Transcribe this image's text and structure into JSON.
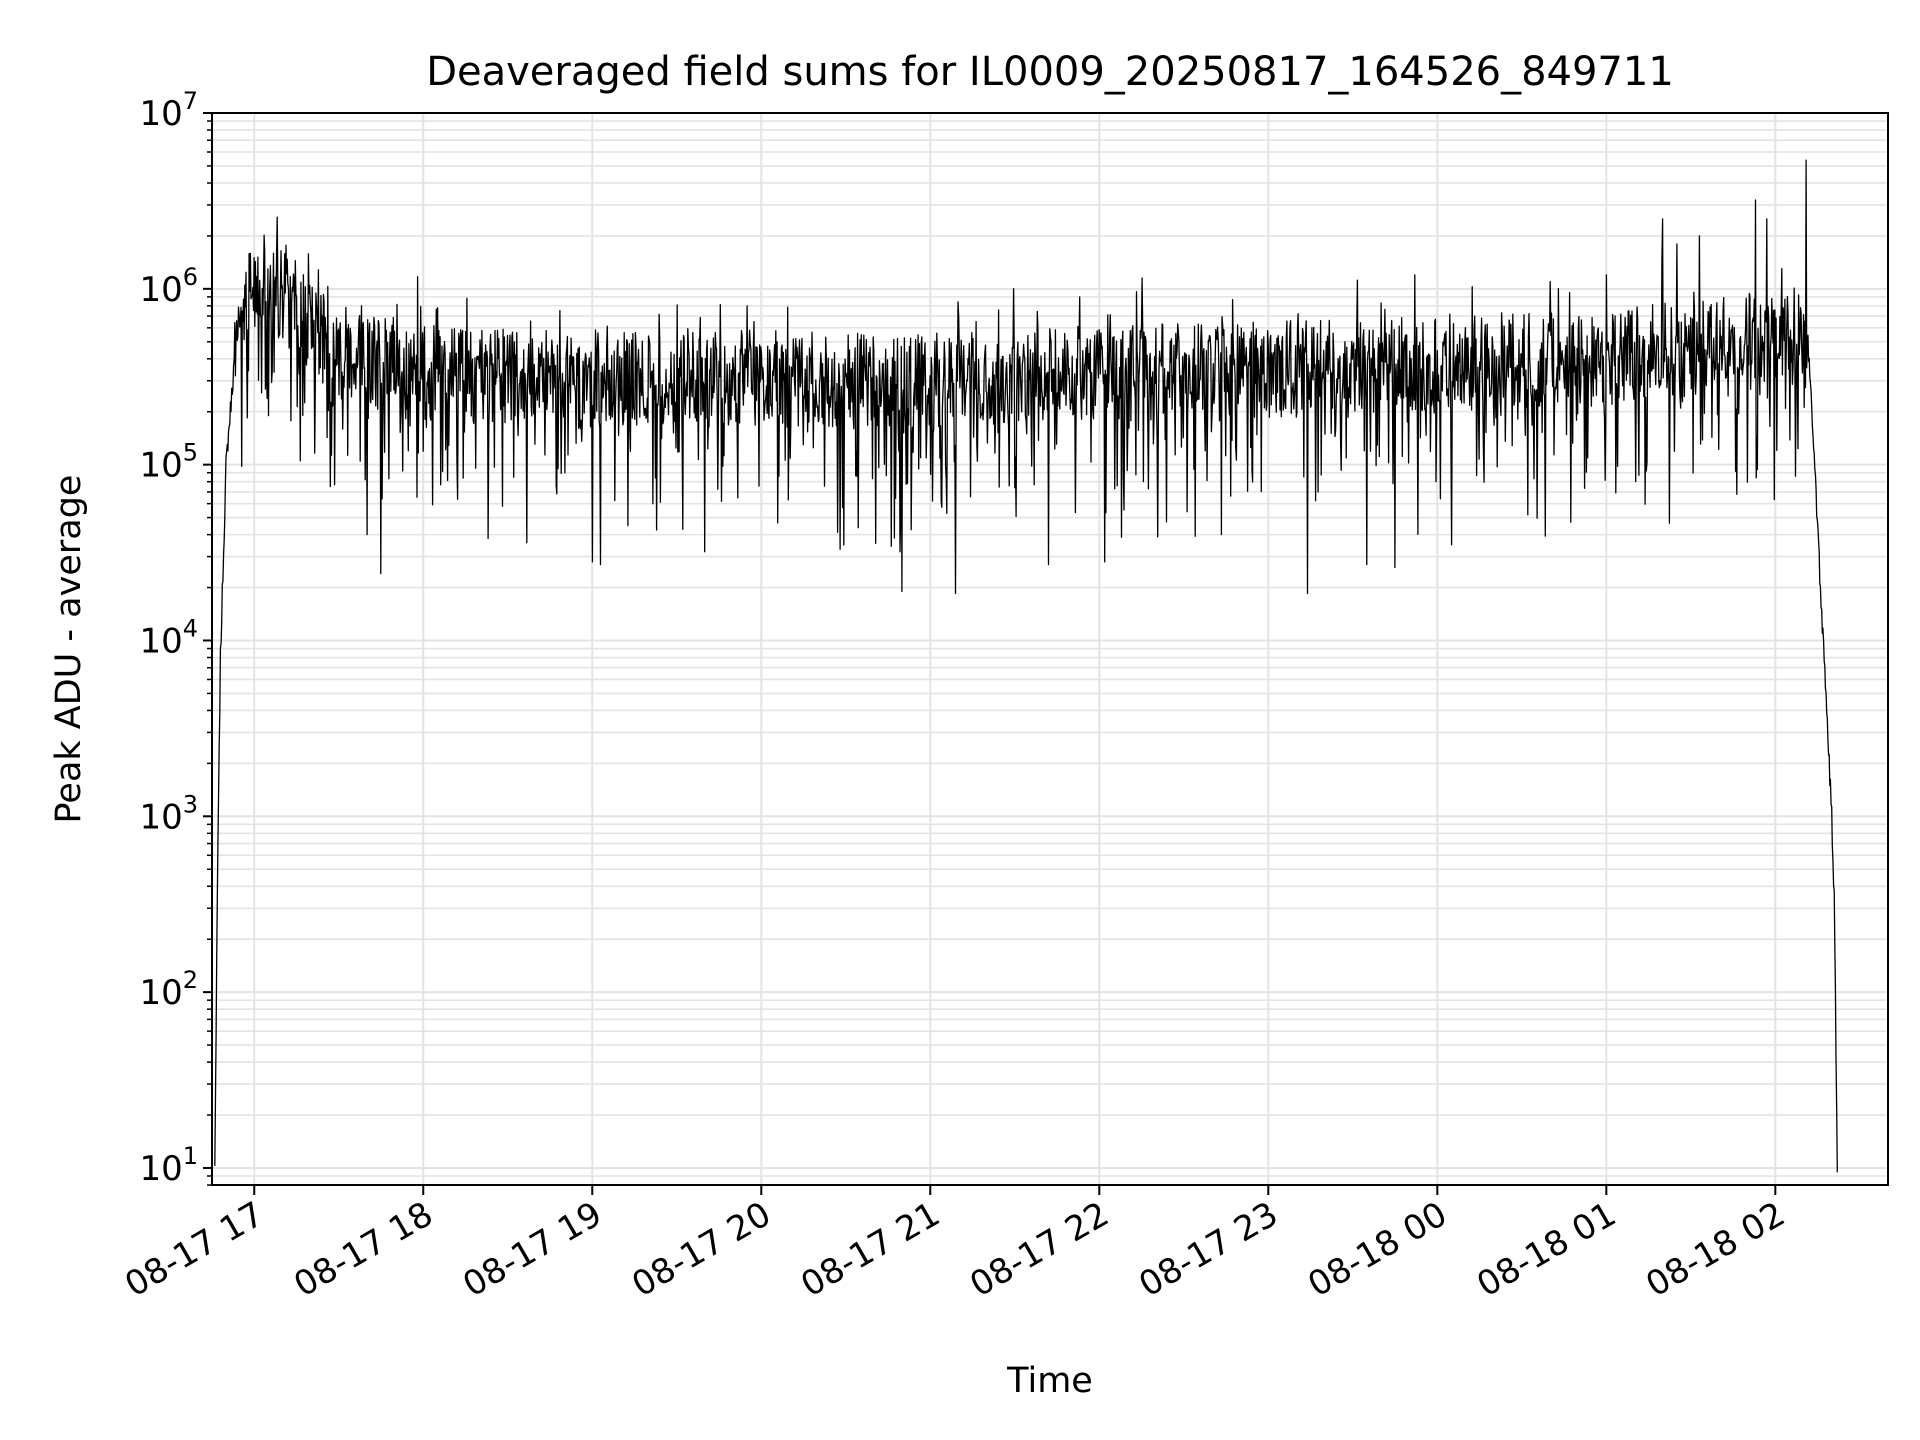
{
  "chart_data": {
    "type": "line",
    "title": "Deaveraged field sums for IL0009_20250817_164526_849711",
    "xlabel": "Time",
    "ylabel": "Peak ADU - average",
    "yscale": "log",
    "ylim": [
      8,
      10000000
    ],
    "xlim": [
      "2025-08-17 16:45:00",
      "2025-08-18 02:40:00"
    ],
    "grid": true,
    "line_color": "#000000",
    "grid_color": "#e3e3e3",
    "x_ticks": [
      {
        "time": "2025-08-17 17:00:00",
        "label": "08-17 17"
      },
      {
        "time": "2025-08-17 18:00:00",
        "label": "08-17 18"
      },
      {
        "time": "2025-08-17 19:00:00",
        "label": "08-17 19"
      },
      {
        "time": "2025-08-17 20:00:00",
        "label": "08-17 20"
      },
      {
        "time": "2025-08-17 21:00:00",
        "label": "08-17 21"
      },
      {
        "time": "2025-08-17 22:00:00",
        "label": "08-17 22"
      },
      {
        "time": "2025-08-17 23:00:00",
        "label": "08-17 23"
      },
      {
        "time": "2025-08-18 00:00:00",
        "label": "08-18 00"
      },
      {
        "time": "2025-08-18 01:00:00",
        "label": "08-18 01"
      },
      {
        "time": "2025-08-18 02:00:00",
        "label": "08-18 02"
      }
    ],
    "y_ticks": [
      {
        "value": 10,
        "base": "10",
        "exp": "1"
      },
      {
        "value": 100,
        "base": "10",
        "exp": "2"
      },
      {
        "value": 1000,
        "base": "10",
        "exp": "3"
      },
      {
        "value": 10000,
        "base": "10",
        "exp": "4"
      },
      {
        "value": 100000,
        "base": "10",
        "exp": "5"
      },
      {
        "value": 1000000,
        "base": "10",
        "exp": "6"
      },
      {
        "value": 10000000,
        "base": "10",
        "exp": "7"
      }
    ],
    "series": [
      {
        "envelope": [
          {
            "time": "2025-08-17 16:46:00",
            "value": 10
          },
          {
            "time": "2025-08-17 16:47:00",
            "value": 500
          },
          {
            "time": "2025-08-17 16:48:00",
            "value": 8000
          },
          {
            "time": "2025-08-17 16:50:00",
            "value": 100000
          },
          {
            "time": "2025-08-17 16:53:00",
            "value": 400000
          },
          {
            "time": "2025-08-17 16:57:00",
            "value": 800000
          },
          {
            "time": "2025-08-17 17:03:00",
            "value": 1100000
          },
          {
            "time": "2025-08-17 17:10:00",
            "value": 950000
          },
          {
            "time": "2025-08-17 17:20:00",
            "value": 600000
          },
          {
            "time": "2025-08-17 17:30:00",
            "value": 450000
          },
          {
            "time": "2025-08-17 18:00:00",
            "value": 330000
          },
          {
            "time": "2025-08-17 19:00:00",
            "value": 300000
          },
          {
            "time": "2025-08-17 20:00:00",
            "value": 310000
          },
          {
            "time": "2025-08-17 21:00:00",
            "value": 290000
          },
          {
            "time": "2025-08-17 22:00:00",
            "value": 330000
          },
          {
            "time": "2025-08-17 23:00:00",
            "value": 350000
          },
          {
            "time": "2025-08-18 00:00:00",
            "value": 380000
          },
          {
            "time": "2025-08-18 01:00:00",
            "value": 400000
          },
          {
            "time": "2025-08-18 01:45:00",
            "value": 500000
          },
          {
            "time": "2025-08-18 02:00:00",
            "value": 500000
          },
          {
            "time": "2025-08-18 02:08:00",
            "value": 550000
          },
          {
            "time": "2025-08-18 02:12:00",
            "value": 400000
          },
          {
            "time": "2025-08-18 02:14:00",
            "value": 100000
          },
          {
            "time": "2025-08-18 02:16:00",
            "value": 20000
          },
          {
            "time": "2025-08-18 02:18:00",
            "value": 5000
          },
          {
            "time": "2025-08-18 02:20:00",
            "value": 1000
          },
          {
            "time": "2025-08-18 02:21:00",
            "value": 300
          },
          {
            "time": "2025-08-18 02:22:00",
            "value": 10
          }
        ],
        "noise_band_dex": 0.7,
        "spikes": [
          {
            "time": "2025-08-17 17:27:00",
            "value": 75000
          },
          {
            "time": "2025-08-17 17:40:00",
            "value": 40000
          },
          {
            "time": "2025-08-17 17:45:00",
            "value": 24000
          },
          {
            "time": "2025-08-17 18:23:00",
            "value": 38000
          },
          {
            "time": "2025-08-17 19:00:00",
            "value": 28000
          },
          {
            "time": "2025-08-17 19:03:00",
            "value": 27000
          },
          {
            "time": "2025-08-17 19:40:00",
            "value": 32000
          },
          {
            "time": "2025-08-17 20:28:00",
            "value": 33000
          },
          {
            "time": "2025-08-17 20:50:00",
            "value": 19000
          },
          {
            "time": "2025-08-17 21:09:00",
            "value": 18500
          },
          {
            "time": "2025-08-17 21:42:00",
            "value": 27000
          },
          {
            "time": "2025-08-17 22:02:00",
            "value": 28000
          },
          {
            "time": "2025-08-17 23:14:00",
            "value": 18500
          },
          {
            "time": "2025-08-17 23:35:00",
            "value": 27000
          },
          {
            "time": "2025-08-17 23:45:00",
            "value": 26000
          },
          {
            "time": "2025-08-18 00:05:00",
            "value": 35000
          },
          {
            "time": "2025-08-17 17:38:00",
            "value": 800000
          },
          {
            "time": "2025-08-17 18:05:00",
            "value": 780000
          },
          {
            "time": "2025-08-17 19:55:00",
            "value": 800000
          },
          {
            "time": "2025-08-17 21:53:00",
            "value": 900000
          },
          {
            "time": "2025-08-17 23:52:00",
            "value": 1200000
          },
          {
            "time": "2025-08-18 00:40:00",
            "value": 1100000
          },
          {
            "time": "2025-08-18 01:00:00",
            "value": 1200000
          },
          {
            "time": "2025-08-18 01:20:00",
            "value": 2500000
          },
          {
            "time": "2025-08-18 01:25:00",
            "value": 1800000
          },
          {
            "time": "2025-08-18 01:33:00",
            "value": 2000000
          },
          {
            "time": "2025-08-18 01:53:00",
            "value": 3200000
          },
          {
            "time": "2025-08-18 01:57:00",
            "value": 2500000
          },
          {
            "time": "2025-08-18 02:11:00",
            "value": 5400000
          }
        ]
      }
    ]
  }
}
